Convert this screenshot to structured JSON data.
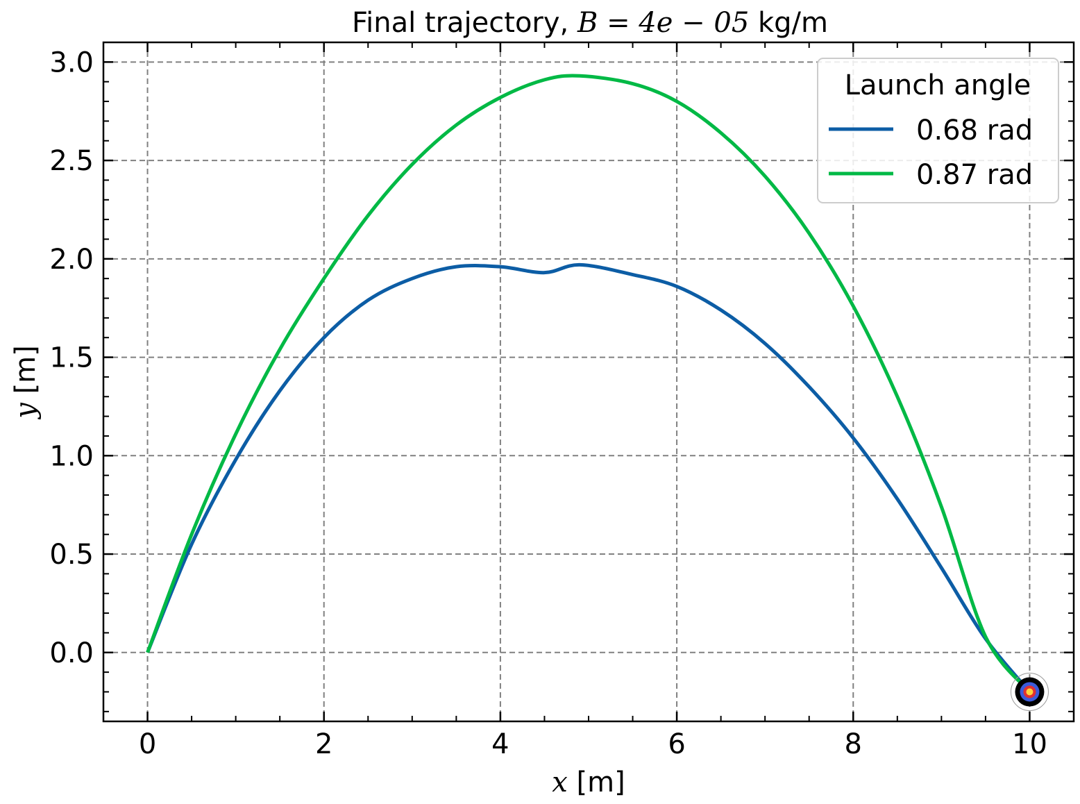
{
  "chart_data": {
    "type": "line",
    "title": {
      "prefix": "Final trajectory, ",
      "math": "B = 4e − 05",
      "suffix": " kg/m"
    },
    "xlabel": {
      "var": "x",
      "unit": " [m]"
    },
    "ylabel": {
      "var": "y",
      "unit": " [m]"
    },
    "xlim": [
      -0.5,
      10.5
    ],
    "ylim": [
      -0.35,
      3.1
    ],
    "xticks": [
      0,
      2,
      4,
      6,
      8,
      10
    ],
    "xtick_labels": [
      "0",
      "2",
      "4",
      "6",
      "8",
      "10"
    ],
    "yticks": [
      0.0,
      0.5,
      1.0,
      1.5,
      2.0,
      2.5,
      3.0
    ],
    "ytick_labels": [
      "0.0",
      "0.5",
      "1.0",
      "1.5",
      "2.0",
      "2.5",
      "3.0"
    ],
    "grid": true,
    "legend": {
      "title": "Launch angle",
      "placement": "top-right"
    },
    "series": [
      {
        "name": "0.68 rad",
        "color": "#0C5DA5",
        "x": [
          0,
          0.5,
          1,
          1.5,
          2,
          2.5,
          3,
          3.5,
          4,
          4.5,
          4.9,
          5.5,
          6,
          6.5,
          7,
          7.5,
          8,
          8.5,
          9,
          9.5,
          10
        ],
        "y": [
          0,
          0.55,
          0.98,
          1.33,
          1.6,
          1.79,
          1.9,
          1.96,
          1.96,
          1.93,
          1.97,
          1.92,
          1.86,
          1.74,
          1.57,
          1.35,
          1.09,
          0.78,
          0.43,
          0.07,
          -0.2
        ]
      },
      {
        "name": "0.87 rad",
        "color": "#00B945",
        "x": [
          0,
          0.5,
          1,
          1.5,
          2,
          2.5,
          3,
          3.5,
          4,
          4.5,
          4.9,
          5.5,
          6,
          6.5,
          7,
          7.5,
          8,
          8.5,
          9,
          9.5,
          10
        ],
        "y": [
          0,
          0.6,
          1.11,
          1.54,
          1.9,
          2.22,
          2.48,
          2.68,
          2.82,
          2.91,
          2.93,
          2.89,
          2.8,
          2.64,
          2.42,
          2.13,
          1.76,
          1.3,
          0.74,
          0.08,
          -0.2
        ]
      }
    ],
    "target": {
      "x": 10,
      "y": -0.2,
      "rings": [
        "#000000",
        "#3B5BDB",
        "#E03131",
        "#FFD43B"
      ]
    }
  }
}
